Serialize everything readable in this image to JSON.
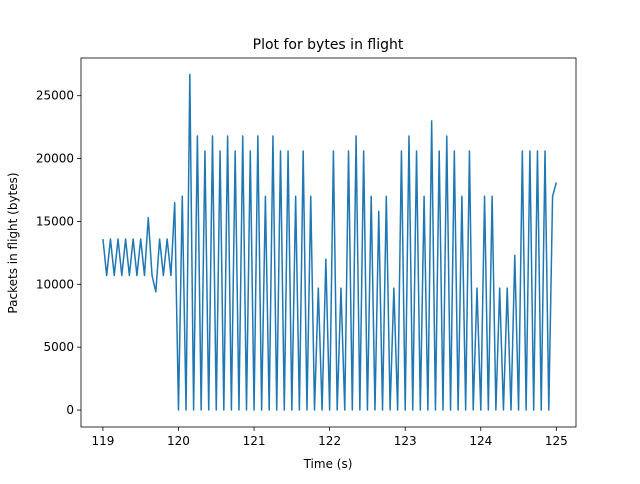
{
  "chart_data": {
    "type": "line",
    "title": "Plot for bytes in flight",
    "xlabel": "Time (s)",
    "ylabel": "Packets in flight (bytes)",
    "xlim": [
      118.71,
      125.26
    ],
    "ylim": [
      -1350,
      28000
    ],
    "xticks": [
      119,
      120,
      121,
      122,
      123,
      124,
      125
    ],
    "yticks": [
      0,
      5000,
      10000,
      15000,
      20000,
      25000
    ],
    "series": [
      {
        "name": "bytes in flight",
        "color": "#1f77b4",
        "x": [
          119.0,
          119.05,
          119.1,
          119.15,
          119.2,
          119.25,
          119.3,
          119.35,
          119.4,
          119.45,
          119.5,
          119.55,
          119.6,
          119.65,
          119.7,
          119.75,
          119.8,
          119.85,
          119.9,
          119.95,
          120.0,
          120.05,
          120.1,
          120.15,
          120.2,
          120.25,
          120.3,
          120.35,
          120.4,
          120.45,
          120.5,
          120.55,
          120.6,
          120.65,
          120.7,
          120.75,
          120.8,
          120.85,
          120.9,
          120.95,
          121.0,
          121.05,
          121.1,
          121.15,
          121.2,
          121.25,
          121.3,
          121.35,
          121.4,
          121.45,
          121.5,
          121.55,
          121.6,
          121.65,
          121.7,
          121.75,
          121.8,
          121.85,
          121.9,
          121.95,
          122.0,
          122.05,
          122.1,
          122.15,
          122.2,
          122.25,
          122.3,
          122.35,
          122.4,
          122.45,
          122.5,
          122.55,
          122.6,
          122.65,
          122.7,
          122.75,
          122.8,
          122.85,
          122.9,
          122.95,
          123.0,
          123.05,
          123.1,
          123.15,
          123.2,
          123.25,
          123.3,
          123.35,
          123.4,
          123.45,
          123.5,
          123.55,
          123.6,
          123.65,
          123.7,
          123.75,
          123.8,
          123.85,
          123.9,
          123.95,
          124.0,
          124.05,
          124.1,
          124.15,
          124.2,
          124.25,
          124.3,
          124.35,
          124.4,
          124.45,
          124.5,
          124.55,
          124.6,
          124.65,
          124.7,
          124.75,
          124.8,
          124.85,
          124.9,
          124.95,
          125.0
        ],
        "values": [
          13600,
          10700,
          13600,
          10700,
          13600,
          10700,
          13600,
          10700,
          13600,
          10700,
          13600,
          10700,
          15300,
          10700,
          9400,
          13600,
          10700,
          13600,
          10700,
          16500,
          0,
          17000,
          0,
          26700,
          0,
          21800,
          0,
          20600,
          0,
          21800,
          0,
          20600,
          0,
          21800,
          0,
          20600,
          0,
          21800,
          0,
          20600,
          0,
          21800,
          0,
          17000,
          0,
          21800,
          0,
          20600,
          0,
          20600,
          0,
          17000,
          0,
          20600,
          0,
          17000,
          0,
          9700,
          0,
          12000,
          0,
          20600,
          0,
          9700,
          0,
          20600,
          0,
          21800,
          0,
          20600,
          0,
          17000,
          0,
          15800,
          0,
          17000,
          0,
          9700,
          0,
          20600,
          0,
          21800,
          0,
          20600,
          0,
          17000,
          0,
          23000,
          0,
          20600,
          0,
          21800,
          0,
          20600,
          0,
          17000,
          0,
          20600,
          0,
          9700,
          0,
          17000,
          0,
          17000,
          0,
          9700,
          0,
          9700,
          0,
          12300,
          0,
          20600,
          0,
          20600,
          0,
          20600,
          0,
          20600,
          0,
          17000,
          18100
        ]
      }
    ]
  }
}
